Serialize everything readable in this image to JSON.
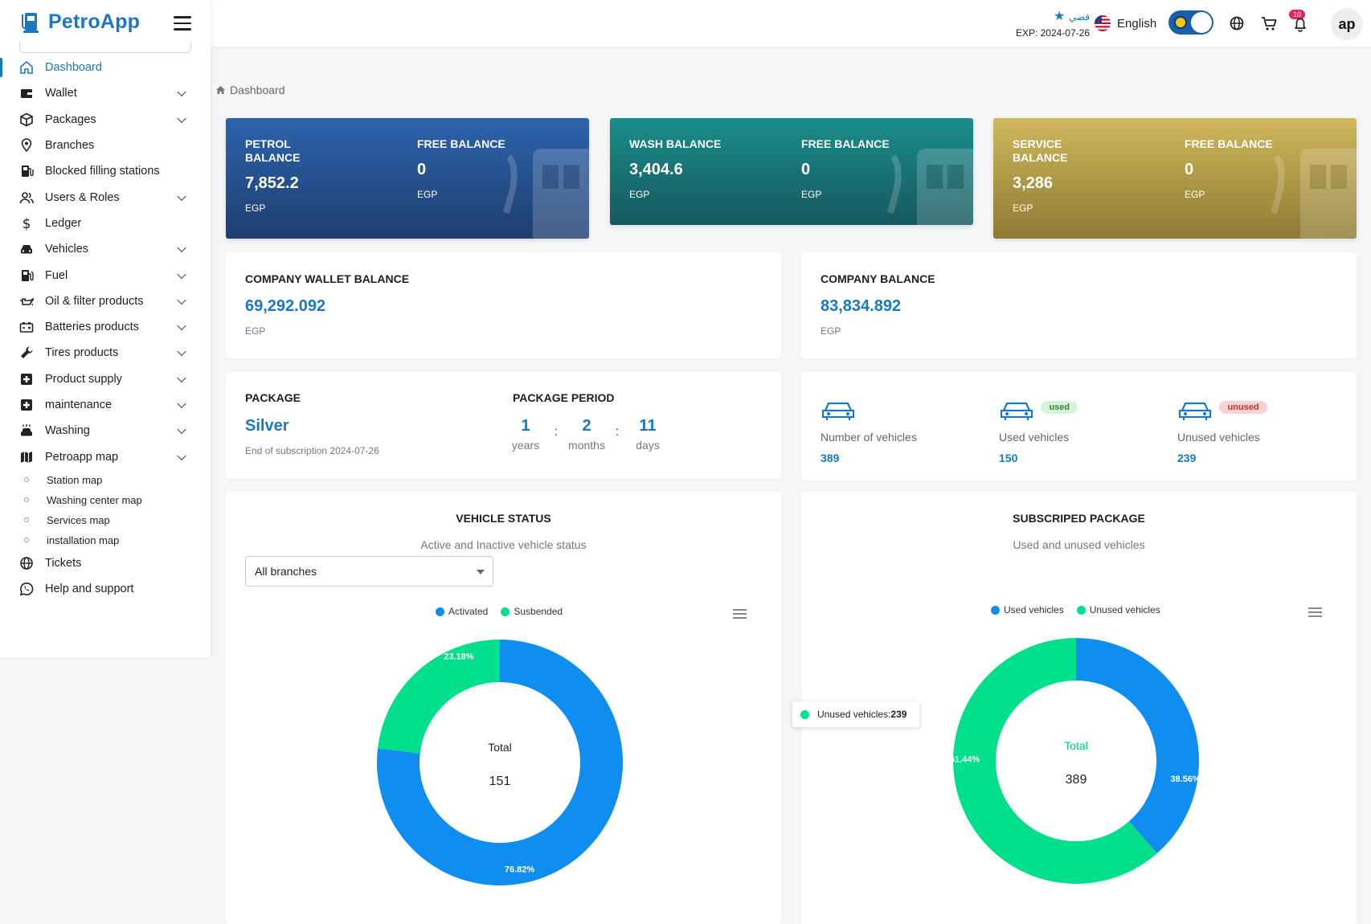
{
  "app": {
    "name": "PetroApp"
  },
  "sidebar": {
    "items": [
      {
        "label": "Dashboard",
        "icon": "home-icon",
        "has_children": false,
        "active": true
      },
      {
        "label": "Wallet",
        "icon": "wallet-icon",
        "has_children": true
      },
      {
        "label": "Packages",
        "icon": "package-icon",
        "has_children": true
      },
      {
        "label": "Branches",
        "icon": "location-pin-icon",
        "has_children": false
      },
      {
        "label": "Blocked filling stations",
        "icon": "fuel-station-icon",
        "has_children": false
      },
      {
        "label": "Users & Roles",
        "icon": "users-icon",
        "has_children": true
      },
      {
        "label": "Ledger",
        "icon": "dollar-icon",
        "has_children": false
      },
      {
        "label": "Vehicles",
        "icon": "car-icon",
        "has_children": true
      },
      {
        "label": "Fuel",
        "icon": "fuel-pump-icon",
        "has_children": true
      },
      {
        "label": "Oil & filter products",
        "icon": "oil-can-icon",
        "has_children": true
      },
      {
        "label": "Batteries products",
        "icon": "battery-icon",
        "has_children": true
      },
      {
        "label": "Tires products",
        "icon": "wrench-icon",
        "has_children": true
      },
      {
        "label": "Product supply",
        "icon": "medical-box-icon",
        "has_children": true
      },
      {
        "label": "maintenance",
        "icon": "medical-box-icon",
        "has_children": true
      },
      {
        "label": "Washing",
        "icon": "car-wash-icon",
        "has_children": true
      },
      {
        "label": "Petroapp map",
        "icon": "map-icon",
        "has_children": true
      }
    ],
    "map_subitems": [
      "Station map",
      "Washing center map",
      "Services map",
      "installation map"
    ],
    "bottom_items": [
      {
        "label": "Tickets",
        "icon": "globe-icon"
      },
      {
        "label": "Help and support",
        "icon": "whatsapp-icon"
      }
    ]
  },
  "topbar": {
    "plan_name": "فضي",
    "plan_expiry": "EXP: 2024-07-26",
    "language": "English",
    "notification_count": "10",
    "avatar_initials": "ap"
  },
  "breadcrumb": {
    "label": "Dashboard"
  },
  "balances": {
    "petrol": {
      "title": "PETROL BALANCE",
      "value": "7,852.2",
      "unit": "EGP",
      "free_title": "FREE BALANCE",
      "free_value": "0",
      "free_unit": "EGP"
    },
    "wash": {
      "title": "WASH BALANCE",
      "value": "3,404.6",
      "unit": "EGP",
      "free_title": "FREE BALANCE",
      "free_value": "0",
      "free_unit": "EGP"
    },
    "service": {
      "title": "SERVICE BALANCE",
      "value": "3,286",
      "unit": "EGP",
      "free_title": "FREE BALANCE",
      "free_value": "0",
      "free_unit": "EGP"
    }
  },
  "wallet": {
    "title": "COMPANY WALLET BALANCE",
    "value": "69,292.092",
    "unit": "EGP"
  },
  "company_balance": {
    "title": "COMPANY BALANCE",
    "value": "83,834.892",
    "unit": "EGP"
  },
  "package": {
    "title": "PACKAGE",
    "name": "Silver",
    "end_text": "End of subscription 2024-07-26",
    "period_title": "PACKAGE PERIOD",
    "years": "1",
    "years_label": "years",
    "months": "2",
    "months_label": "months",
    "days": "11",
    "days_label": "days",
    "separator": ":"
  },
  "vehicles": {
    "number_label": "Number of vehicles",
    "number": "389",
    "used_label": "Used vehicles",
    "used": "150",
    "used_badge": "used",
    "unused_label": "Unused vehicles",
    "unused": "239",
    "unused_badge": "unused"
  },
  "vehicle_status": {
    "title": "VEHICLE STATUS",
    "subtitle": "Active and Inactive vehicle status",
    "branch_select": "All branches",
    "total_label": "Total",
    "total": "151",
    "legend": [
      "Activated",
      "Susbended"
    ]
  },
  "subscribed_package": {
    "title": "SUBSCRIPED PACKAGE",
    "subtitle": "Used and unused vehicles",
    "total_label": "Total",
    "total": "389",
    "legend": [
      "Used vehicles",
      "Unused vehicles"
    ],
    "tooltip_label": "Unused vehicles: ",
    "tooltip_value": "239"
  },
  "colors": {
    "accent": "#1a78c2",
    "donut_blue": "#0f8ef0",
    "donut_green": "#00e08a"
  },
  "chart_data": [
    {
      "type": "pie",
      "title": "VEHICLE STATUS",
      "subtitle": "Active and Inactive vehicle status",
      "categories": [
        "Activated",
        "Susbended"
      ],
      "values": [
        116,
        35
      ],
      "labels": [
        "76.82%",
        "23.18%"
      ],
      "colors": [
        "#0f8ef0",
        "#00e08a"
      ],
      "legend": "top"
    },
    {
      "type": "pie",
      "title": "SUBSCRIPED PACKAGE",
      "subtitle": "Used and unused vehicles",
      "categories": [
        "Used vehicles",
        "Unused vehicles"
      ],
      "values": [
        150,
        239
      ],
      "labels": [
        "38.56%",
        "61.44%"
      ],
      "colors": [
        "#0f8ef0",
        "#00e08a"
      ],
      "legend": "top"
    }
  ]
}
